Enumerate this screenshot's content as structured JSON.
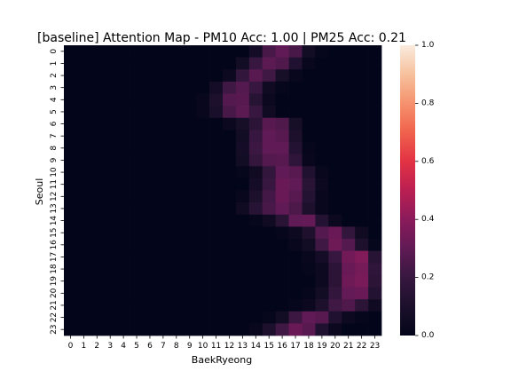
{
  "chart_data": {
    "type": "heatmap",
    "title": "[baseline] Attention Map - PM10 Acc: 1.00 | PM25 Acc: 0.21",
    "xlabel": "BaekRyeong",
    "ylabel": "Seoul",
    "x_ticks": [
      "0",
      "1",
      "2",
      "3",
      "4",
      "5",
      "6",
      "7",
      "8",
      "9",
      "10",
      "11",
      "12",
      "13",
      "14",
      "15",
      "16",
      "17",
      "18",
      "19",
      "20",
      "21",
      "22",
      "23"
    ],
    "y_ticks": [
      "0",
      "1",
      "2",
      "3",
      "4",
      "5",
      "6",
      "7",
      "8",
      "9",
      "10",
      "11",
      "12",
      "13",
      "14",
      "15",
      "16",
      "17",
      "18",
      "19",
      "20",
      "21",
      "22",
      "23"
    ],
    "colorbar": {
      "range": [
        0,
        1
      ],
      "ticks": [
        "0.0",
        "0.2",
        "0.4",
        "0.6",
        "0.8",
        "1.0"
      ],
      "colormap": "rocket"
    },
    "values": [
      [
        0,
        0,
        0,
        0,
        0,
        0,
        0,
        0,
        0,
        0,
        0,
        0,
        0,
        0,
        0.07,
        0.24,
        0.3,
        0.24,
        0.06,
        0.01,
        0,
        0,
        0,
        0
      ],
      [
        0,
        0,
        0,
        0,
        0,
        0,
        0,
        0,
        0,
        0,
        0,
        0,
        0,
        0.06,
        0.2,
        0.29,
        0.26,
        0.12,
        0.02,
        0,
        0,
        0,
        0,
        0
      ],
      [
        0,
        0,
        0,
        0,
        0,
        0,
        0,
        0,
        0,
        0,
        0,
        0,
        0.04,
        0.18,
        0.28,
        0.22,
        0.08,
        0.02,
        0,
        0,
        0,
        0,
        0,
        0
      ],
      [
        0,
        0,
        0,
        0,
        0,
        0,
        0,
        0,
        0,
        0,
        0,
        0.07,
        0.22,
        0.27,
        0.2,
        0.05,
        0.01,
        0,
        0,
        0,
        0,
        0,
        0,
        0
      ],
      [
        0,
        0,
        0,
        0,
        0,
        0,
        0,
        0,
        0,
        0,
        0.02,
        0.1,
        0.27,
        0.28,
        0.14,
        0.03,
        0,
        0,
        0,
        0,
        0,
        0,
        0,
        0
      ],
      [
        0,
        0,
        0,
        0,
        0,
        0,
        0,
        0,
        0,
        0,
        0.02,
        0.09,
        0.24,
        0.29,
        0.2,
        0.05,
        0,
        0,
        0,
        0,
        0,
        0,
        0,
        0
      ],
      [
        0,
        0,
        0,
        0,
        0,
        0,
        0,
        0,
        0,
        0,
        0,
        0,
        0.03,
        0.08,
        0.16,
        0.28,
        0.26,
        0.08,
        0,
        0,
        0,
        0,
        0,
        0
      ],
      [
        0,
        0,
        0,
        0,
        0,
        0,
        0,
        0,
        0,
        0,
        0,
        0,
        0,
        0.06,
        0.2,
        0.3,
        0.28,
        0.1,
        0,
        0,
        0,
        0,
        0,
        0
      ],
      [
        0,
        0,
        0,
        0,
        0,
        0,
        0,
        0,
        0,
        0,
        0,
        0,
        0,
        0.07,
        0.21,
        0.3,
        0.3,
        0.13,
        0.01,
        0,
        0,
        0,
        0,
        0
      ],
      [
        0,
        0,
        0,
        0,
        0,
        0,
        0,
        0,
        0,
        0,
        0,
        0,
        0,
        0.06,
        0.19,
        0.27,
        0.28,
        0.17,
        0.02,
        0,
        0,
        0,
        0,
        0
      ],
      [
        0,
        0,
        0,
        0,
        0,
        0,
        0,
        0,
        0,
        0,
        0,
        0,
        0,
        0.01,
        0.05,
        0.18,
        0.3,
        0.28,
        0.12,
        0.02,
        0,
        0,
        0,
        0
      ],
      [
        0,
        0,
        0,
        0,
        0,
        0,
        0,
        0,
        0,
        0,
        0,
        0,
        0,
        0,
        0.07,
        0.2,
        0.32,
        0.3,
        0.15,
        0.03,
        0,
        0,
        0,
        0
      ],
      [
        0,
        0,
        0,
        0,
        0,
        0,
        0,
        0,
        0,
        0,
        0,
        0,
        0,
        0.02,
        0.1,
        0.23,
        0.32,
        0.28,
        0.13,
        0.02,
        0,
        0,
        0,
        0
      ],
      [
        0,
        0,
        0,
        0,
        0,
        0,
        0,
        0,
        0,
        0,
        0,
        0,
        0,
        0.05,
        0.14,
        0.24,
        0.3,
        0.25,
        0.1,
        0.02,
        0,
        0,
        0,
        0
      ],
      [
        0,
        0,
        0,
        0,
        0,
        0,
        0,
        0,
        0,
        0,
        0,
        0,
        0,
        0,
        0.01,
        0.05,
        0.15,
        0.3,
        0.31,
        0.13,
        0.03,
        0,
        0,
        0
      ],
      [
        0,
        0,
        0,
        0,
        0,
        0,
        0,
        0,
        0,
        0,
        0,
        0,
        0,
        0,
        0,
        0,
        0.01,
        0.04,
        0.11,
        0.27,
        0.32,
        0.18,
        0.05,
        0
      ],
      [
        0,
        0,
        0,
        0,
        0,
        0,
        0,
        0,
        0,
        0,
        0,
        0,
        0,
        0,
        0,
        0,
        0,
        0.02,
        0.06,
        0.22,
        0.33,
        0.27,
        0.1,
        0.01
      ],
      [
        0,
        0,
        0,
        0,
        0,
        0,
        0,
        0,
        0,
        0,
        0,
        0,
        0,
        0,
        0,
        0,
        0,
        0,
        0.02,
        0.07,
        0.2,
        0.34,
        0.38,
        0.14
      ],
      [
        0,
        0,
        0,
        0,
        0,
        0,
        0,
        0,
        0,
        0,
        0,
        0,
        0,
        0,
        0,
        0,
        0,
        0,
        0.01,
        0.04,
        0.16,
        0.32,
        0.35,
        0.17
      ],
      [
        0,
        0,
        0,
        0,
        0,
        0,
        0,
        0,
        0,
        0,
        0,
        0,
        0,
        0,
        0,
        0,
        0,
        0,
        0,
        0.04,
        0.16,
        0.33,
        0.36,
        0.16
      ],
      [
        0,
        0,
        0,
        0,
        0,
        0,
        0,
        0,
        0,
        0,
        0,
        0,
        0,
        0,
        0,
        0,
        0,
        0,
        0.01,
        0.06,
        0.18,
        0.31,
        0.32,
        0.13
      ],
      [
        0,
        0,
        0,
        0,
        0,
        0,
        0,
        0,
        0,
        0,
        0,
        0,
        0,
        0,
        0,
        0,
        0,
        0.01,
        0.03,
        0.1,
        0.22,
        0.26,
        0.16,
        0.05
      ],
      [
        0,
        0,
        0,
        0,
        0,
        0,
        0,
        0,
        0,
        0,
        0,
        0,
        0,
        0,
        0,
        0.01,
        0.06,
        0.21,
        0.3,
        0.28,
        0.12,
        0.04,
        0.01,
        0
      ],
      [
        0,
        0,
        0,
        0,
        0,
        0,
        0,
        0,
        0,
        0,
        0,
        0,
        0,
        0,
        0.02,
        0.1,
        0.22,
        0.32,
        0.28,
        0.12,
        0.03,
        0,
        0,
        0
      ]
    ]
  }
}
